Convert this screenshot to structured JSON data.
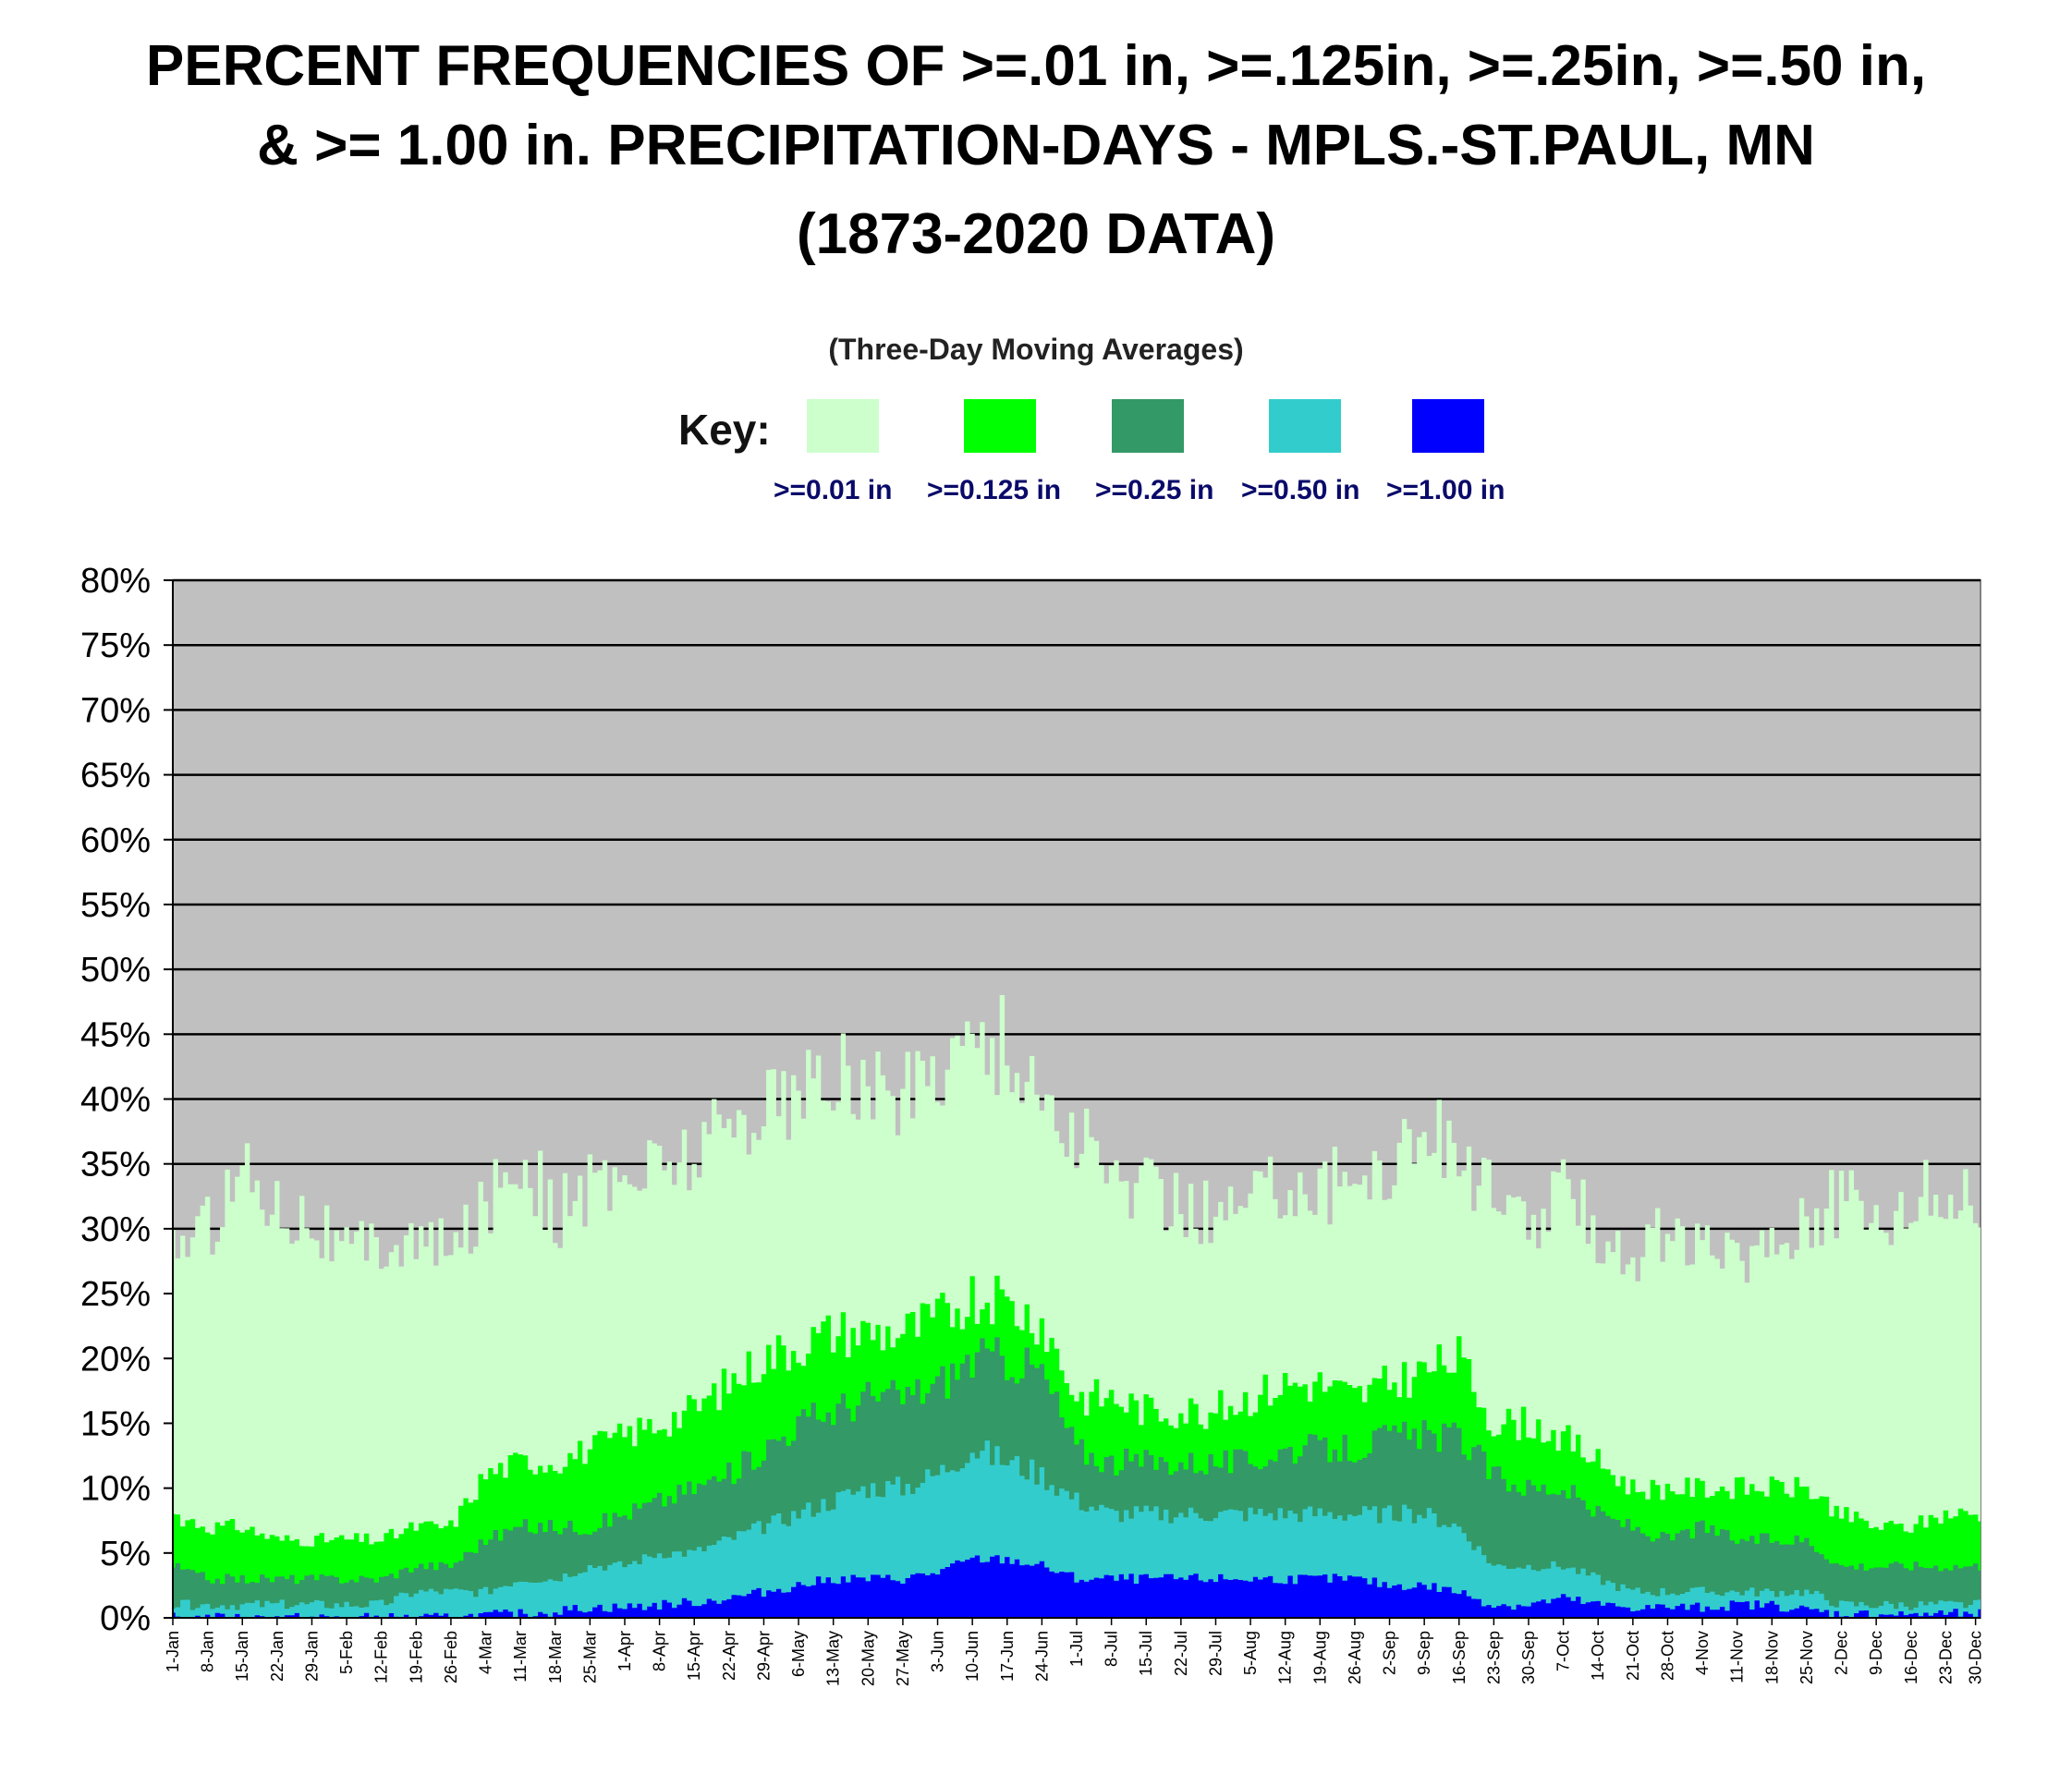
{
  "chart_data": {
    "type": "area",
    "title_lines": [
      "PERCENT FREQUENCIES OF >=.01 in, >=.125in, >=.25in, >=.50 in,",
      "& >= 1.00 in. PRECIPITATION-DAYS - MPLS.-ST.PAUL, MN",
      "(1873-2020 DATA)"
    ],
    "subtitle": "(Three-Day Moving Averages)",
    "key_label": "Key:",
    "ylim": [
      0,
      80
    ],
    "y_ticks": [
      "0%",
      "5%",
      "10%",
      "15%",
      "20%",
      "25%",
      "30%",
      "35%",
      "40%",
      "45%",
      "50%",
      "55%",
      "60%",
      "65%",
      "70%",
      "75%",
      "80%"
    ],
    "x_ticks": [
      "1-Jan",
      "8-Jan",
      "15-Jan",
      "22-Jan",
      "29-Jan",
      "5-Feb",
      "12-Feb",
      "19-Feb",
      "26-Feb",
      "4-Mar",
      "11-Mar",
      "18-Mar",
      "25-Mar",
      "1-Apr",
      "8-Apr",
      "15-Apr",
      "22-Apr",
      "29-Apr",
      "6-May",
      "13-May",
      "20-May",
      "27-May",
      "3-Jun",
      "10-Jun",
      "17-Jun",
      "24-Jun",
      "1-Jul",
      "8-Jul",
      "15-Jul",
      "22-Jul",
      "29-Jul",
      "5-Aug",
      "12-Aug",
      "19-Aug",
      "26-Aug",
      "2-Sep",
      "9-Sep",
      "16-Sep",
      "23-Sep",
      "30-Sep",
      "7-Oct",
      "14-Oct",
      "21-Oct",
      "28-Oct",
      "4-Nov",
      "11-Nov",
      "18-Nov",
      "25-Nov",
      "2-Dec",
      "9-Dec",
      "16-Dec",
      "23-Dec",
      "30-Dec"
    ],
    "grid": true,
    "plot_background": "#c0c0c0",
    "anchor_days": [
      1,
      8,
      15,
      22,
      29,
      36,
      43,
      50,
      57,
      64,
      71,
      78,
      85,
      92,
      99,
      106,
      113,
      120,
      127,
      134,
      141,
      148,
      155,
      162,
      169,
      176,
      183,
      190,
      197,
      204,
      211,
      218,
      225,
      232,
      239,
      246,
      253,
      260,
      267,
      274,
      281,
      288,
      295,
      302,
      309,
      316,
      323,
      330,
      337,
      344,
      351,
      358,
      364
    ],
    "series": [
      {
        "name": ">=0.01 in",
        "color": "#ccffcc",
        "values": [
          29,
          30,
          35,
          32,
          31,
          28,
          29,
          29,
          28,
          32,
          36,
          31,
          33,
          34,
          35,
          36,
          38,
          40,
          40,
          42,
          41,
          40,
          43,
          45,
          44,
          40,
          37,
          34,
          33,
          32,
          31,
          32,
          34,
          33,
          34,
          35,
          38,
          36,
          32,
          30,
          33,
          30,
          28,
          30,
          28,
          28,
          29,
          31,
          32,
          31,
          32,
          33,
          32
        ]
      },
      {
        "name": ">=0.125 in",
        "color": "#00ff00",
        "values": [
          8,
          7,
          7,
          6,
          6,
          6,
          6,
          7,
          7,
          11,
          12,
          12,
          13,
          14,
          15,
          16,
          18,
          20,
          21,
          22,
          22,
          22,
          23,
          25,
          24,
          23,
          17,
          17,
          16,
          16,
          16,
          17,
          18,
          18,
          17,
          18,
          19,
          20,
          15,
          15,
          14,
          12,
          10,
          10,
          10,
          10,
          10,
          10,
          8,
          7,
          7,
          8,
          8
        ]
      },
      {
        "name": ">=0.25 in",
        "color": "#339966",
        "values": [
          4,
          3,
          3,
          3,
          3,
          3,
          3,
          4,
          4,
          6,
          7,
          7,
          7,
          8,
          9,
          10,
          11,
          13,
          15,
          16,
          17,
          17,
          18,
          20,
          20,
          19,
          13,
          12,
          12,
          12,
          12,
          12,
          13,
          13,
          13,
          14,
          14,
          14,
          11,
          10,
          10,
          8,
          7,
          6,
          7,
          6,
          6,
          6,
          4,
          4,
          4,
          4,
          4
        ]
      },
      {
        "name": ">=0.50 in",
        "color": "#33cccc",
        "values": [
          1,
          1,
          1,
          1,
          1,
          1,
          1,
          2,
          2,
          2,
          3,
          3,
          4,
          4,
          5,
          5,
          6,
          7,
          8,
          9,
          10,
          10,
          11,
          13,
          12,
          11,
          9,
          8,
          8,
          8,
          8,
          8,
          8,
          8,
          8,
          8,
          8,
          7,
          4,
          4,
          4,
          3,
          2,
          2,
          2,
          2,
          2,
          2,
          1,
          1,
          1,
          1,
          1
        ]
      },
      {
        "name": ">=1.00 in",
        "color": "#0000ff",
        "values": [
          0,
          0,
          0,
          0,
          0,
          0,
          0,
          0,
          0,
          0.2,
          0.3,
          0.5,
          0.8,
          0.8,
          1,
          1.2,
          1.5,
          2,
          2.5,
          3,
          3,
          3,
          3.5,
          4.5,
          4.5,
          4,
          3,
          3,
          3,
          3,
          3,
          3,
          3,
          3,
          3,
          2.5,
          2.5,
          2,
          1,
          1,
          1.5,
          1,
          0.8,
          0.8,
          0.8,
          1,
          1,
          0.6,
          0.3,
          0.3,
          0.3,
          0.3,
          0.3
        ]
      }
    ]
  }
}
